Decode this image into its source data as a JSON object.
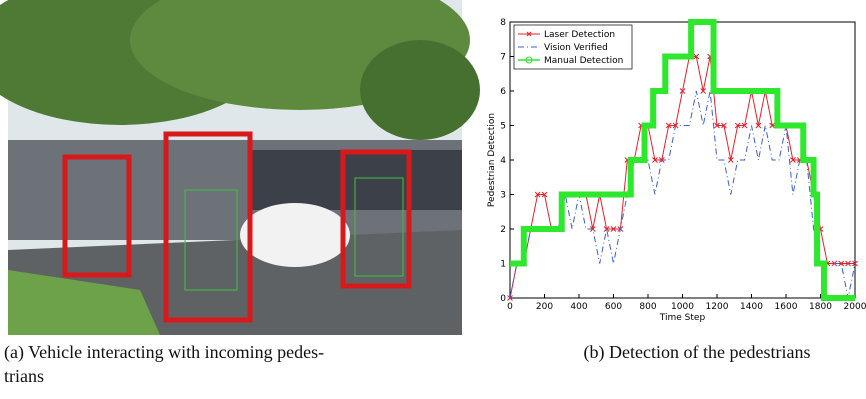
{
  "captions": {
    "a": [
      "(a) Vehicle interacting with incoming pedes-",
      "trians"
    ],
    "b": [
      "(b) Detection of the pedestrians"
    ]
  },
  "chart_data": {
    "type": "line",
    "xlabel": "Time Step",
    "ylabel": "Pedestrian Detection",
    "xlim": [
      0,
      2000
    ],
    "ylim": [
      0,
      8
    ],
    "xticks": [
      0,
      200,
      400,
      600,
      800,
      1000,
      1200,
      1400,
      1600,
      1800,
      2000
    ],
    "yticks": [
      0,
      1,
      2,
      3,
      4,
      5,
      6,
      7,
      8
    ],
    "legend": "upper left",
    "series": [
      {
        "name": "Laser Detection",
        "color": "#e8202a",
        "marker": "x",
        "x": [
          0,
          40,
          80,
          120,
          160,
          200,
          240,
          280,
          320,
          360,
          400,
          440,
          480,
          520,
          560,
          600,
          640,
          680,
          720,
          760,
          800,
          840,
          880,
          920,
          960,
          1000,
          1040,
          1080,
          1120,
          1160,
          1200,
          1240,
          1280,
          1320,
          1360,
          1400,
          1440,
          1480,
          1520,
          1560,
          1600,
          1640,
          1680,
          1720,
          1760,
          1800,
          1840,
          1880,
          1920,
          1960,
          2000
        ],
        "values": [
          0,
          1,
          1,
          2,
          3,
          3,
          2,
          2,
          3,
          3,
          3,
          3,
          2,
          3,
          2,
          2,
          2,
          4,
          4,
          5,
          5,
          4,
          4,
          5,
          5,
          6,
          7,
          7,
          6,
          7,
          5,
          5,
          4,
          5,
          5,
          6,
          5,
          6,
          5,
          5,
          5,
          4,
          4,
          4,
          3,
          2,
          1,
          1,
          1,
          1,
          1
        ]
      },
      {
        "name": "Vision Verified",
        "color": "#3a5fd0",
        "marker": "none",
        "x": [
          0,
          40,
          80,
          120,
          160,
          200,
          240,
          280,
          320,
          360,
          400,
          440,
          480,
          520,
          560,
          600,
          640,
          680,
          720,
          760,
          800,
          840,
          880,
          920,
          960,
          1000,
          1040,
          1080,
          1120,
          1160,
          1200,
          1240,
          1280,
          1320,
          1360,
          1400,
          1440,
          1480,
          1520,
          1560,
          1600,
          1640,
          1680,
          1720,
          1760,
          1800,
          1840,
          1880,
          1920,
          1960,
          2000
        ],
        "values": [
          0,
          1,
          1,
          2,
          2,
          2,
          2,
          2,
          3,
          2,
          3,
          2,
          2,
          1,
          2,
          1,
          2,
          3,
          4,
          4,
          4,
          3,
          4,
          4,
          5,
          5,
          5,
          6,
          5,
          6,
          4,
          4,
          3,
          4,
          4,
          5,
          4,
          5,
          4,
          4,
          5,
          3,
          4,
          4,
          2,
          1,
          1,
          1,
          1,
          0,
          1
        ]
      },
      {
        "name": "Manual Detection",
        "color": "#2ee82e",
        "marker": "o",
        "x": [
          0,
          80,
          80,
          300,
          300,
          700,
          700,
          780,
          780,
          830,
          830,
          900,
          900,
          1050,
          1050,
          1180,
          1180,
          1550,
          1550,
          1700,
          1700,
          1760,
          1760,
          1780,
          1780,
          1820,
          1820,
          2000
        ],
        "values": [
          1,
          1,
          2,
          2,
          3,
          3,
          4,
          4,
          5,
          5,
          6,
          6,
          7,
          7,
          8,
          8,
          6,
          6,
          5,
          5,
          4,
          4,
          3,
          3,
          1,
          1,
          0,
          0
        ]
      }
    ]
  }
}
